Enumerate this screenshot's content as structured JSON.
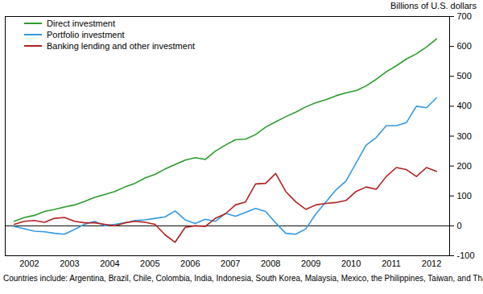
{
  "chart_data": {
    "type": "line",
    "y_label": "Billions of U.S. dollars",
    "caption": "Countries include: Argentina, Brazil, Chile, Colombia, India, Indonesia, South Korea, Malaysia, Mexico, the Philippines, Taiwan, and Thailand",
    "x": [
      2002.125,
      2002.375,
      2002.625,
      2002.875,
      2003.125,
      2003.375,
      2003.625,
      2003.875,
      2004.125,
      2004.375,
      2004.625,
      2004.875,
      2005.125,
      2005.375,
      2005.625,
      2005.875,
      2006.125,
      2006.375,
      2006.625,
      2006.875,
      2007.125,
      2007.375,
      2007.625,
      2007.875,
      2008.125,
      2008.375,
      2008.625,
      2008.875,
      2009.125,
      2009.375,
      2009.625,
      2009.875,
      2010.125,
      2010.375,
      2010.625,
      2010.875,
      2011.125,
      2011.375,
      2011.625,
      2011.875,
      2012.125,
      2012.375,
      2012.625
    ],
    "series": [
      {
        "name": "Direct investment",
        "color": "#2e9b2e",
        "values": [
          15,
          28,
          35,
          48,
          55,
          63,
          70,
          82,
          95,
          105,
          115,
          130,
          142,
          160,
          172,
          190,
          205,
          220,
          228,
          222,
          250,
          270,
          288,
          290,
          305,
          330,
          348,
          365,
          380,
          398,
          412,
          422,
          435,
          445,
          452,
          468,
          490,
          515,
          535,
          558,
          575,
          598,
          625
        ]
      },
      {
        "name": "Portfolio investment",
        "color": "#3399e6",
        "values": [
          -2,
          -10,
          -18,
          -20,
          -25,
          -28,
          -12,
          5,
          15,
          0,
          5,
          10,
          18,
          20,
          25,
          30,
          50,
          20,
          8,
          22,
          15,
          42,
          32,
          45,
          58,
          48,
          10,
          -25,
          -28,
          -10,
          40,
          80,
          120,
          150,
          210,
          270,
          295,
          335,
          335,
          345,
          400,
          395,
          428
        ]
      },
      {
        "name": "Banking lending and other investment",
        "color": "#b22222",
        "values": [
          5,
          15,
          18,
          12,
          25,
          28,
          15,
          10,
          10,
          5,
          0,
          10,
          15,
          12,
          5,
          -30,
          -55,
          -5,
          0,
          -2,
          25,
          40,
          70,
          80,
          140,
          142,
          175,
          115,
          80,
          55,
          70,
          75,
          78,
          85,
          115,
          130,
          122,
          165,
          195,
          188,
          165,
          195,
          182
        ]
      }
    ],
    "xlim": [
      2001.9,
      2012.95
    ],
    "xticks": [
      {
        "value": 2002.5,
        "label": "2002"
      },
      {
        "value": 2003.5,
        "label": "2003"
      },
      {
        "value": 2004.5,
        "label": "2004"
      },
      {
        "value": 2005.5,
        "label": "2005"
      },
      {
        "value": 2006.5,
        "label": "2006"
      },
      {
        "value": 2007.5,
        "label": "2007"
      },
      {
        "value": 2008.5,
        "label": "2008"
      },
      {
        "value": 2009.5,
        "label": "2009"
      },
      {
        "value": 2010.5,
        "label": "2010"
      },
      {
        "value": 2011.5,
        "label": "2011"
      },
      {
        "value": 2012.5,
        "label": "2012"
      }
    ],
    "ylim": [
      -100,
      700
    ],
    "yticks": [
      -100,
      0,
      100,
      200,
      300,
      400,
      500,
      600,
      700
    ],
    "grid": false,
    "legend": "top-left"
  }
}
